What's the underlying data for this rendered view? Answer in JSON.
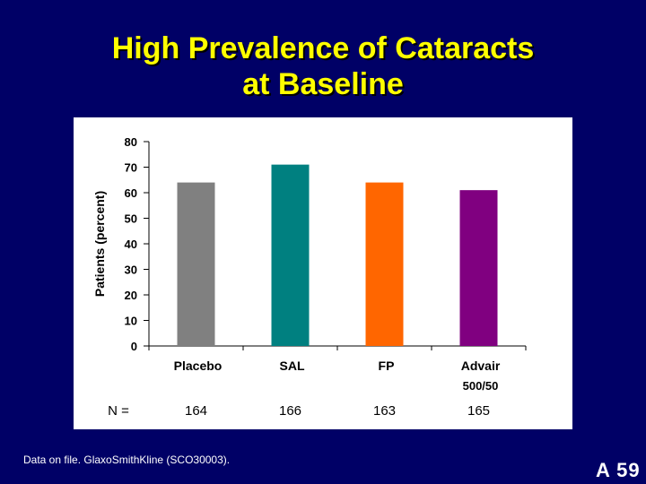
{
  "title": {
    "line1": "High Prevalence of Cataracts",
    "line2": "at Baseline"
  },
  "footnote": "Data on file. GlaxoSmithKline (SCO30003).",
  "slide_number": "A 59",
  "n_label": "N =",
  "chart_data": {
    "type": "bar",
    "categories": [
      "Placebo",
      "SAL",
      "FP",
      "Advair\n500/50"
    ],
    "values": [
      64,
      71,
      64,
      61
    ],
    "n_values": [
      "164",
      "166",
      "163",
      "165"
    ],
    "colors": [
      "#808080",
      "#008080",
      "#ff6600",
      "#800080"
    ],
    "title": "",
    "xlabel": "",
    "ylabel": "Patients (percent)",
    "ylim": [
      0,
      80
    ],
    "yticks": [
      0,
      10,
      20,
      30,
      40,
      50,
      60,
      70,
      80
    ],
    "grid": false
  }
}
